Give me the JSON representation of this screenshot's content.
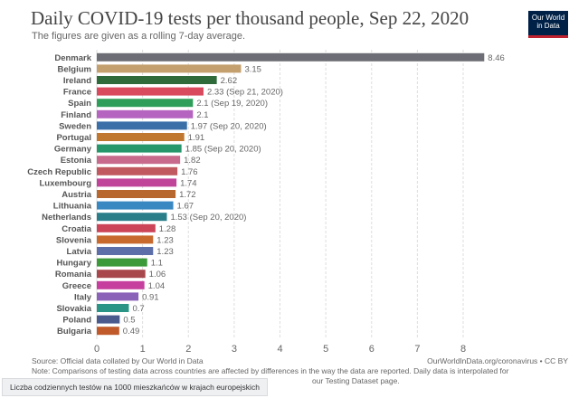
{
  "header": {
    "title": "Daily COVID-19 tests per thousand people, Sep 22, 2020",
    "subtitle": "The figures are given as a rolling 7-day average.",
    "logo_line1": "Our World",
    "logo_line2": "in Data"
  },
  "footer": {
    "source": "Source: Official data collated by Our World in Data",
    "source_right": "OurWorldInData.org/coronavirus • CC BY",
    "note": "Note: Comparisons of testing data across countries are affected by differences in the way the data are reported. Daily data is interpolated for",
    "note_tail": "our Testing Dataset page."
  },
  "caption": "Liczba codziennych testów na 1000 mieszkańców w krajach europejskich",
  "chart_data": {
    "type": "bar",
    "orientation": "horizontal",
    "title": "Daily COVID-19 tests per thousand people, Sep 22, 2020",
    "subtitle": "The figures are given as a rolling 7-day average.",
    "xlim": [
      0,
      8.6
    ],
    "xticks": [
      0,
      1,
      2,
      3,
      4,
      5,
      6,
      7,
      8
    ],
    "grid": "vertical",
    "categories": [
      "Denmark",
      "Belgium",
      "Ireland",
      "France",
      "Spain",
      "Finland",
      "Sweden",
      "Portugal",
      "Germany",
      "Estonia",
      "Czech Republic",
      "Luxembourg",
      "Austria",
      "Lithuania",
      "Netherlands",
      "Croatia",
      "Slovenia",
      "Latvia",
      "Hungary",
      "Romania",
      "Greece",
      "Italy",
      "Slovakia",
      "Poland",
      "Bulgaria"
    ],
    "values": [
      8.46,
      3.15,
      2.62,
      2.33,
      2.1,
      2.1,
      1.97,
      1.91,
      1.85,
      1.82,
      1.76,
      1.74,
      1.72,
      1.67,
      1.53,
      1.28,
      1.23,
      1.23,
      1.1,
      1.06,
      1.04,
      0.91,
      0.7,
      0.5,
      0.49
    ],
    "labels": [
      "8.46",
      "3.15",
      "2.62",
      "2.33 (Sep 21, 2020)",
      "2.1 (Sep 19, 2020)",
      "2.1",
      "1.97 (Sep 20, 2020)",
      "1.91",
      "1.85 (Sep 20, 2020)",
      "1.82",
      "1.76",
      "1.74",
      "1.72",
      "1.67",
      "1.53 (Sep 20, 2020)",
      "1.28",
      "1.23",
      "1.23",
      "1.1",
      "1.06",
      "1.04",
      "0.91",
      "0.7",
      "0.5",
      "0.49"
    ],
    "colors": [
      "#6d6e75",
      "#c4a06e",
      "#2e6a3a",
      "#d94a5e",
      "#2f9e5a",
      "#b565c0",
      "#3a6fa8",
      "#c07830",
      "#26966b",
      "#c86a8c",
      "#c05a60",
      "#c0459a",
      "#b8682e",
      "#3a88c2",
      "#2a7e8a",
      "#cc4458",
      "#c86a2e",
      "#5d6fa8",
      "#3c9a3a",
      "#a8484c",
      "#c63f9e",
      "#8a62b8",
      "#2a9486",
      "#4a5a8c",
      "#c05a2a"
    ]
  }
}
